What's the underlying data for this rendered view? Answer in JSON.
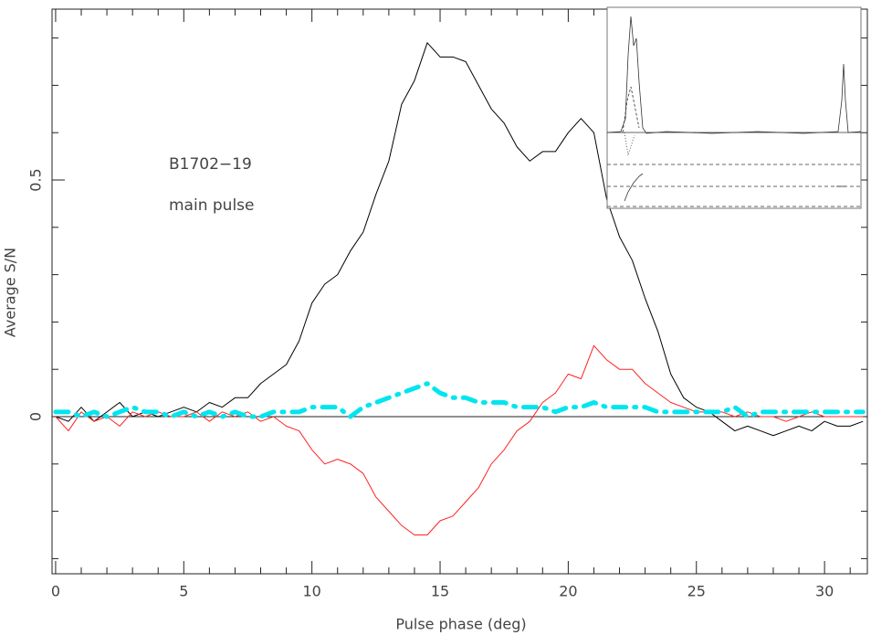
{
  "chart_data": {
    "type": "line",
    "xlabel": "Pulse phase (deg)",
    "ylabel": "Average S/N",
    "annotations": [
      "B1702−19",
      "main pulse"
    ],
    "x": [
      0,
      0.5,
      1,
      1.5,
      2,
      2.5,
      3,
      3.5,
      4,
      4.5,
      5,
      5.5,
      6,
      6.5,
      7,
      7.5,
      8,
      8.5,
      9,
      9.5,
      10,
      10.5,
      11,
      11.5,
      12,
      12.5,
      13,
      13.5,
      14,
      14.5,
      15,
      15.5,
      16,
      16.5,
      17,
      17.5,
      18,
      18.5,
      19,
      19.5,
      20,
      20.5,
      21,
      21.5,
      22,
      22.5,
      23,
      23.5,
      24,
      24.5,
      25,
      25.5,
      26,
      26.5,
      27,
      27.5,
      28,
      28.5,
      29,
      29.5,
      30,
      30.5,
      31,
      31.5
    ],
    "series": [
      {
        "color": "#000000",
        "style": "solid",
        "values": [
          0,
          -0.01,
          0.02,
          -0.01,
          0.01,
          0.03,
          0,
          0.01,
          0,
          0.01,
          0.02,
          0.01,
          0.03,
          0.02,
          0.04,
          0.04,
          0.07,
          0.09,
          0.11,
          0.16,
          0.24,
          0.28,
          0.3,
          0.35,
          0.39,
          0.47,
          0.54,
          0.66,
          0.71,
          0.79,
          0.76,
          0.76,
          0.75,
          0.7,
          0.65,
          0.62,
          0.57,
          0.54,
          0.56,
          0.56,
          0.6,
          0.63,
          0.6,
          0.46,
          0.38,
          0.33,
          0.25,
          0.18,
          0.09,
          0.04,
          0.02,
          0.01,
          -0.01,
          -0.03,
          -0.02,
          -0.03,
          -0.04,
          -0.03,
          -0.02,
          -0.03,
          -0.01,
          -0.02,
          -0.02,
          -0.01
        ]
      },
      {
        "color": "#ff2020",
        "style": "solid",
        "values": [
          0,
          -0.03,
          0.01,
          -0.01,
          0,
          -0.02,
          0.01,
          0,
          0.01,
          0,
          0,
          0.01,
          -0.01,
          0.01,
          0,
          0.01,
          -0.01,
          0,
          -0.02,
          -0.03,
          -0.07,
          -0.1,
          -0.09,
          -0.1,
          -0.12,
          -0.17,
          -0.2,
          -0.23,
          -0.25,
          -0.25,
          -0.22,
          -0.21,
          -0.18,
          -0.15,
          -0.1,
          -0.07,
          -0.03,
          -0.01,
          0.03,
          0.05,
          0.09,
          0.08,
          0.15,
          0.12,
          0.1,
          0.1,
          0.07,
          0.05,
          0.03,
          0.02,
          0.01,
          0.01,
          0.01,
          0,
          0.01,
          0,
          0,
          -0.01,
          0,
          0.01,
          0,
          0,
          0,
          0
        ]
      },
      {
        "color": "#00e5ee",
        "style": "dashdot",
        "values": [
          0.01,
          0.01,
          0,
          0.01,
          0,
          0.01,
          0.02,
          0.01,
          0.01,
          0,
          0.01,
          0,
          0.01,
          0,
          0.01,
          0,
          0,
          0.01,
          0.01,
          0.01,
          0.02,
          0.02,
          0.02,
          0,
          0.02,
          0.03,
          0.04,
          0.05,
          0.06,
          0.07,
          0.05,
          0.04,
          0.04,
          0.03,
          0.03,
          0.03,
          0.02,
          0.02,
          0.02,
          0.01,
          0.02,
          0.02,
          0.03,
          0.02,
          0.02,
          0.02,
          0.02,
          0.01,
          0.01,
          0.01,
          0.01,
          0.01,
          0.01,
          0.02,
          0,
          0.01,
          0.01,
          0.01,
          0.01,
          0.01,
          0.01,
          0.01,
          0.01,
          0.01
        ]
      }
    ],
    "xlim": [
      -0.14,
      31.67
    ],
    "ylim": [
      -0.332,
      0.861
    ],
    "xticks": [
      0,
      5,
      10,
      15,
      20,
      25,
      30
    ],
    "yticks": [
      0,
      0.5
    ],
    "xminor": [
      1,
      2,
      3,
      4,
      6,
      7,
      8,
      9,
      11,
      12,
      13,
      14,
      16,
      17,
      18,
      19,
      21,
      22,
      23,
      24,
      26,
      27,
      28,
      29,
      31
    ],
    "yminor": [
      -0.3,
      -0.2,
      -0.1,
      0.1,
      0.2,
      0.3,
      0.4,
      0.6,
      0.7,
      0.8
    ],
    "zero_line": true
  }
}
